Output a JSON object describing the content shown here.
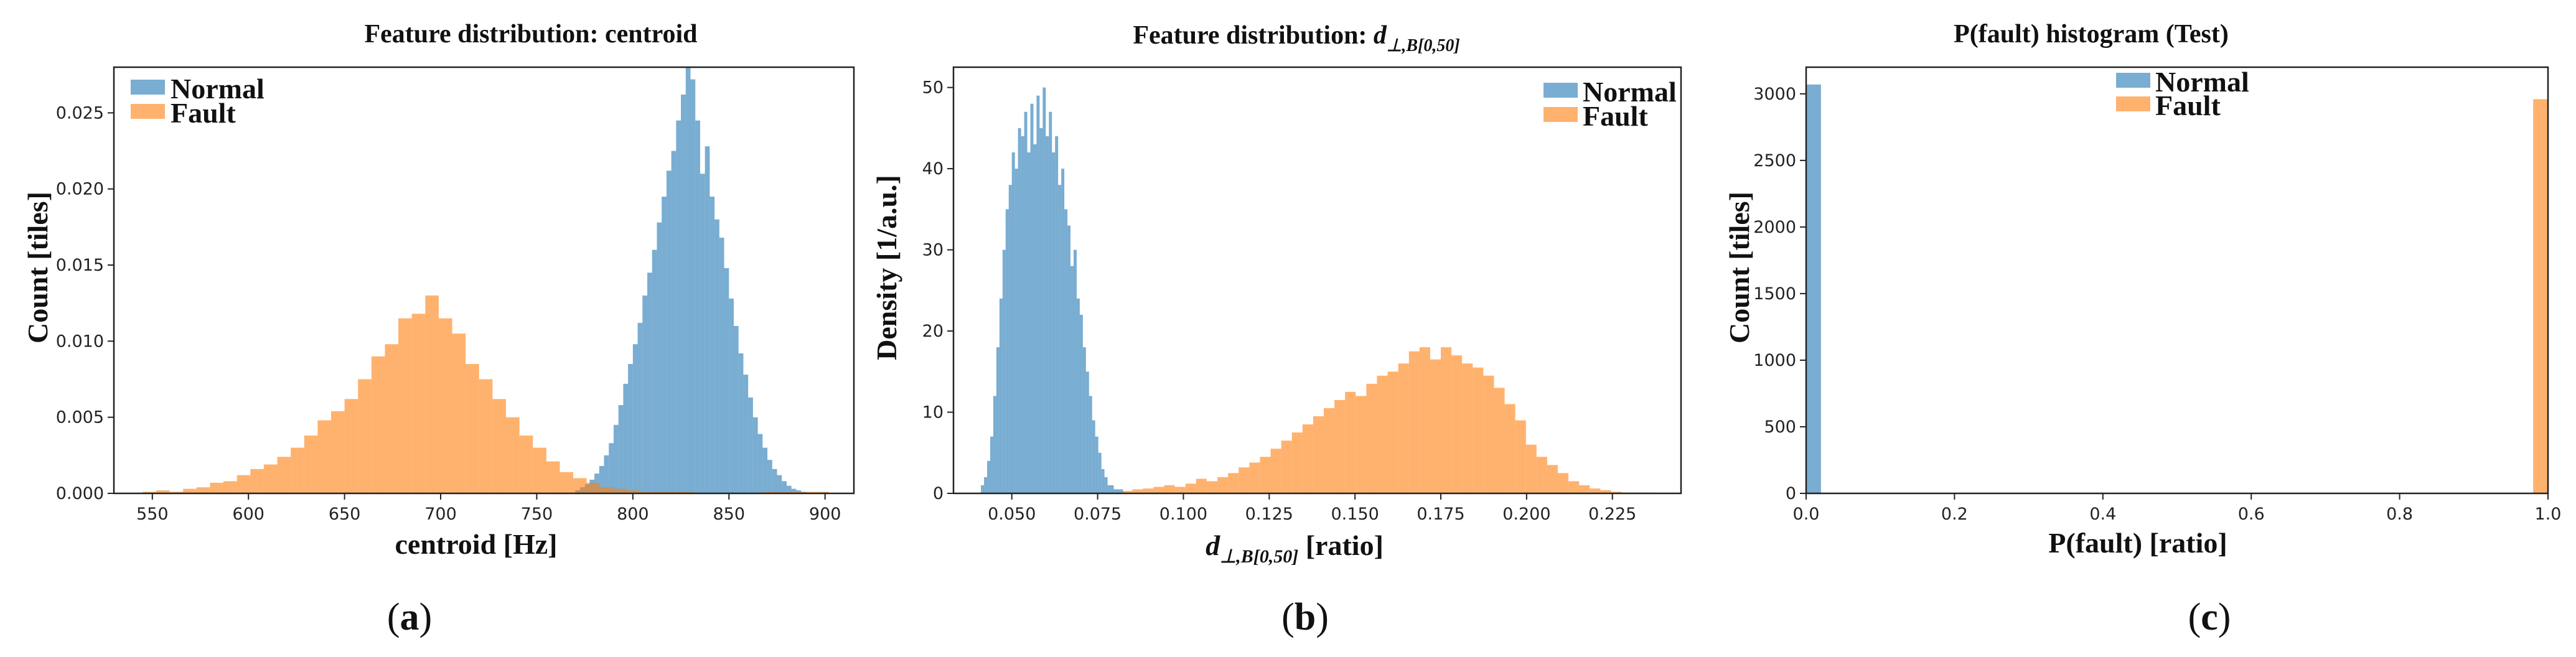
{
  "chart_data": [
    {
      "type": "bar",
      "title": "Feature distribution: centroid",
      "xlabel": "centroid [Hz]",
      "ylabel": "Count [tiles]",
      "panel_label": "a",
      "xlim": [
        530,
        915
      ],
      "ylim": [
        0,
        0.028
      ],
      "xticks": [
        550,
        600,
        650,
        700,
        750,
        800,
        850,
        900
      ],
      "xtick_labels": [
        "550",
        "600",
        "650",
        "700",
        "750",
        "800",
        "850",
        "900"
      ],
      "yticks": [
        0,
        0.005,
        0.01,
        0.015,
        0.02,
        0.025
      ],
      "ytick_labels": [
        "0.000",
        "0.005",
        "0.010",
        "0.015",
        "0.020",
        "0.025"
      ],
      "legend_position": "top-left",
      "series": [
        {
          "name": "Normal",
          "color": "#1f77b4",
          "bin_start": 770,
          "bin_width": 2.5,
          "values": [
            0.0002,
            0.0004,
            0.0006,
            0.0009,
            0.0013,
            0.0018,
            0.0025,
            0.0033,
            0.0045,
            0.0058,
            0.0072,
            0.0085,
            0.0098,
            0.0112,
            0.013,
            0.0145,
            0.016,
            0.0178,
            0.0195,
            0.0212,
            0.0225,
            0.0245,
            0.0262,
            0.0285,
            0.0272,
            0.0245,
            0.021,
            0.0228,
            0.0195,
            0.018,
            0.0168,
            0.0148,
            0.0128,
            0.011,
            0.0092,
            0.0078,
            0.0063,
            0.005,
            0.0039,
            0.003,
            0.0022,
            0.0016,
            0.0012,
            0.0008,
            0.0005,
            0.0003,
            0.0002,
            0.0001
          ]
        },
        {
          "name": "Fault",
          "color": "#ff7f0e",
          "bin_start": 545,
          "bin_width": 7,
          "values": [
            0.0001,
            0.0002,
            0.0001,
            0.0003,
            0.0004,
            0.0007,
            0.0008,
            0.0012,
            0.0016,
            0.0019,
            0.0024,
            0.003,
            0.0038,
            0.0048,
            0.0054,
            0.0062,
            0.0075,
            0.009,
            0.0098,
            0.0115,
            0.0118,
            0.013,
            0.0115,
            0.0105,
            0.0085,
            0.0075,
            0.0062,
            0.005,
            0.0038,
            0.003,
            0.0021,
            0.0014,
            0.001,
            0.0007,
            0.0004,
            0.0003,
            0.0002,
            0.0001,
            0.0001,
            0.0001,
            0.0001,
            0.0,
            0.0,
            0.0,
            0.0,
            0.0,
            0.0001,
            0.0001,
            0.0001,
            0.0001,
            0.0001
          ]
        }
      ]
    },
    {
      "type": "bar",
      "title_prefix": "Feature distribution: ",
      "title_symbol": "d",
      "title_subscript": "⊥,B[0,50]",
      "xlabel_symbol": "d",
      "xlabel_subscript": "⊥,B[0,50]",
      "xlabel_suffix": " [ratio]",
      "ylabel": "Density [1/a.u.]",
      "panel_label": "b",
      "xlim": [
        0.033,
        0.245
      ],
      "ylim": [
        0,
        52.5
      ],
      "xticks": [
        0.05,
        0.075,
        0.1,
        0.125,
        0.15,
        0.175,
        0.2,
        0.225
      ],
      "xtick_labels": [
        "0.050",
        "0.075",
        "0.100",
        "0.125",
        "0.150",
        "0.175",
        "0.200",
        "0.225"
      ],
      "yticks": [
        0,
        10,
        20,
        30,
        40,
        50
      ],
      "ytick_labels": [
        "0",
        "10",
        "20",
        "30",
        "40",
        "50"
      ],
      "legend_position": "top-right",
      "series": [
        {
          "name": "Normal",
          "color": "#1f77b4",
          "bin_start": 0.041,
          "bin_width": 0.0009,
          "values": [
            1,
            2,
            4,
            7,
            12,
            18,
            24,
            30,
            35,
            38,
            42,
            40,
            45,
            44,
            47,
            42,
            48,
            43,
            49,
            45,
            50,
            44,
            47,
            42,
            44,
            38,
            40,
            35,
            33,
            28,
            30,
            24,
            22,
            18,
            15,
            12,
            9,
            7,
            5,
            3,
            2,
            1,
            1,
            0.5,
            0.5,
            0.5
          ]
        },
        {
          "name": "Fault",
          "color": "#ff7f0e",
          "bin_start": 0.082,
          "bin_width": 0.0031,
          "values": [
            0.3,
            0.5,
            0.6,
            0.8,
            1.0,
            0.8,
            1.2,
            1.8,
            1.5,
            2.0,
            2.5,
            3.2,
            3.8,
            4.5,
            5.5,
            6.5,
            7.5,
            8.5,
            9.5,
            10.5,
            11.5,
            12.5,
            12.0,
            13.5,
            14.5,
            15.0,
            16.0,
            17.5,
            18.0,
            16.5,
            18.0,
            17.0,
            16.0,
            15.5,
            14.5,
            13.0,
            11.0,
            9.0,
            6.0,
            4.5,
            3.5,
            2.5,
            1.5,
            1.0,
            0.6,
            0.4,
            0.2,
            0.1,
            0.1,
            0.1
          ]
        }
      ]
    },
    {
      "type": "bar",
      "title": "P(fault) histogram (Test)",
      "xlabel": "P(fault) [ratio]",
      "ylabel": "Count [tiles]",
      "panel_label": "c",
      "xlim": [
        0,
        1.0
      ],
      "ylim": [
        0,
        3200
      ],
      "xticks": [
        0,
        0.2,
        0.4,
        0.6,
        0.8,
        1.0
      ],
      "xtick_labels": [
        "0.0",
        "0.2",
        "0.4",
        "0.6",
        "0.8",
        "1.0"
      ],
      "yticks": [
        0,
        500,
        1000,
        1500,
        2000,
        2500,
        3000
      ],
      "ytick_labels": [
        "0",
        "500",
        "1000",
        "1500",
        "2000",
        "2500",
        "3000"
      ],
      "legend_position": "top-center",
      "series": [
        {
          "name": "Normal",
          "color": "#1f77b4",
          "bin_start": 0.0,
          "bin_width": 0.02,
          "values": [
            3070
          ]
        },
        {
          "name": "Fault",
          "color": "#ff7f0e",
          "bin_start": 0.98,
          "bin_width": 0.02,
          "values": [
            2960
          ]
        }
      ]
    }
  ]
}
